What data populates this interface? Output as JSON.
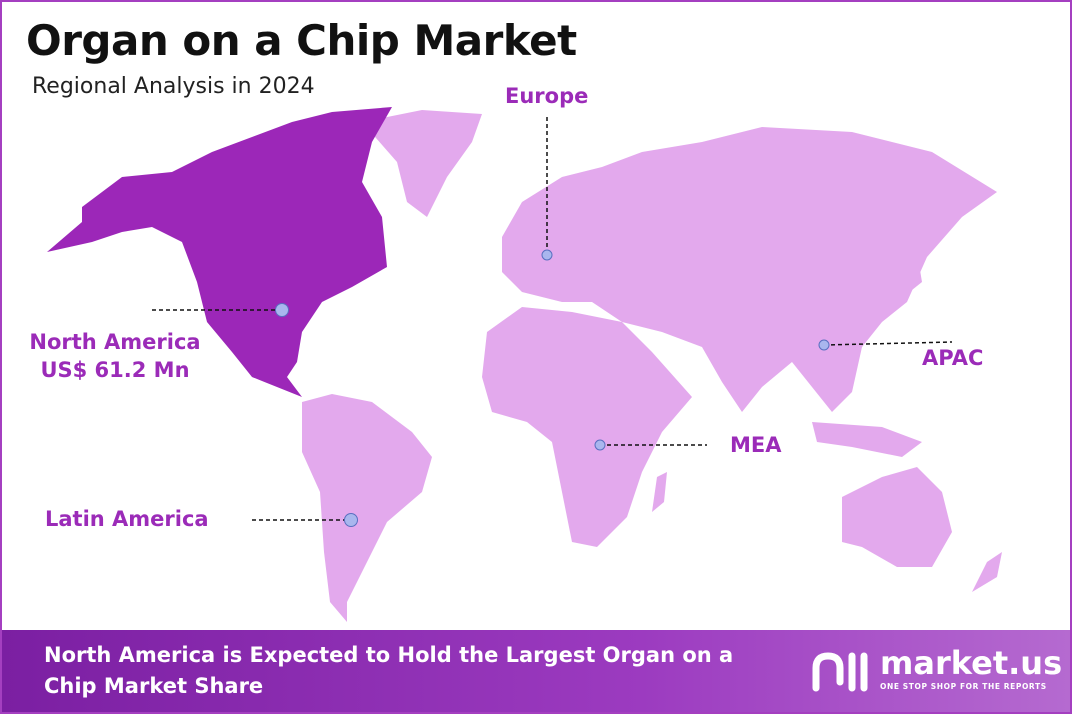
{
  "header": {
    "title": "Organ on a Chip Market",
    "subtitle": "Regional Analysis in 2024"
  },
  "regions": [
    {
      "name": "North America",
      "value": "US$ 61.2 Mn"
    },
    {
      "name": "Europe"
    },
    {
      "name": "APAC"
    },
    {
      "name": "MEA"
    },
    {
      "name": "Latin America"
    }
  ],
  "footer": {
    "text": "North America is Expected to Hold the Largest Organ on a Chip Market Share",
    "brand": "market.us",
    "tagline": "ONE STOP SHOP FOR THE REPORTS"
  }
}
